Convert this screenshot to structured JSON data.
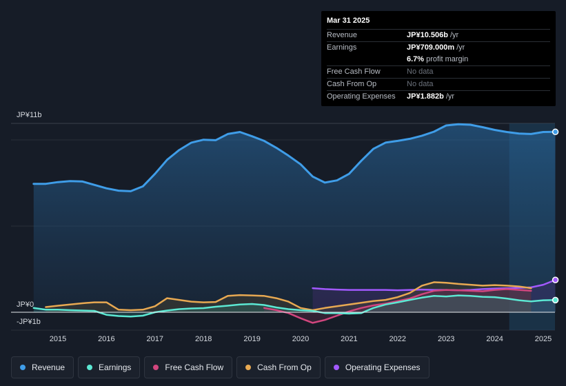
{
  "tooltip": {
    "date": "Mar 31 2025",
    "rows": {
      "revenue": {
        "label": "Revenue",
        "value": "JP¥10.506b",
        "unit": "/yr"
      },
      "earnings": {
        "label": "Earnings",
        "value": "JP¥709.000m",
        "unit": "/yr"
      },
      "margin": {
        "value": "6.7%",
        "unit": "profit margin"
      },
      "fcf": {
        "label": "Free Cash Flow",
        "value": "No data"
      },
      "cfo": {
        "label": "Cash From Op",
        "value": "No data"
      },
      "opex": {
        "label": "Operating Expenses",
        "value": "JP¥1.882b",
        "unit": "/yr"
      }
    }
  },
  "legend": {
    "revenue": "Revenue",
    "earnings": "Earnings",
    "fcf": "Free Cash Flow",
    "cfo": "Cash From Op",
    "opex": "Operating Expenses"
  },
  "colors": {
    "revenue": "#3f9de8",
    "earnings": "#5ce8d3",
    "fcf": "#d1467e",
    "cfo": "#e8a952",
    "opex": "#a259ff"
  },
  "chart_data": {
    "type": "area",
    "currency": "JP¥",
    "unit": "billions",
    "ylim": [
      -1,
      11
    ],
    "y_tick_labels": [
      {
        "value": 11,
        "label": "JP¥11b"
      },
      {
        "value": 0,
        "label": "JP¥0"
      },
      {
        "value": -1,
        "label": "-JP¥1b"
      }
    ],
    "x_tick_labels": [
      "2015",
      "2016",
      "2017",
      "2018",
      "2019",
      "2020",
      "2021",
      "2022",
      "2023",
      "2024",
      "2025"
    ],
    "highlight_from": 2024.3,
    "series": [
      {
        "name": "Revenue",
        "key": "revenue",
        "x": [
          2014.5,
          2014.75,
          2015.0,
          2015.25,
          2015.5,
          2015.75,
          2016.0,
          2016.25,
          2016.5,
          2016.75,
          2017.0,
          2017.25,
          2017.5,
          2017.75,
          2018.0,
          2018.25,
          2018.5,
          2018.75,
          2019.0,
          2019.25,
          2019.5,
          2019.75,
          2020.0,
          2020.25,
          2020.5,
          2020.75,
          2021.0,
          2021.25,
          2021.5,
          2021.75,
          2022.0,
          2022.25,
          2022.5,
          2022.75,
          2023.0,
          2023.25,
          2023.5,
          2023.75,
          2024.0,
          2024.25,
          2024.5,
          2024.75,
          2025.0,
          2025.25
        ],
        "values": [
          7.48,
          7.48,
          7.58,
          7.64,
          7.62,
          7.42,
          7.22,
          7.08,
          7.05,
          7.33,
          8.06,
          8.88,
          9.45,
          9.88,
          10.05,
          10.02,
          10.38,
          10.5,
          10.25,
          9.98,
          9.58,
          9.12,
          8.62,
          7.9,
          7.55,
          7.68,
          8.06,
          8.82,
          9.52,
          9.88,
          9.98,
          10.1,
          10.28,
          10.52,
          10.88,
          10.95,
          10.92,
          10.78,
          10.62,
          10.5,
          10.41,
          10.38,
          10.5,
          10.506
        ]
      },
      {
        "name": "Earnings",
        "key": "earnings",
        "x": [
          2014.5,
          2014.75,
          2015.0,
          2015.25,
          2015.5,
          2015.75,
          2016.0,
          2016.25,
          2016.5,
          2016.75,
          2017.0,
          2017.25,
          2017.5,
          2017.75,
          2018.0,
          2018.25,
          2018.5,
          2018.75,
          2019.0,
          2019.25,
          2019.5,
          2019.75,
          2020.0,
          2020.25,
          2020.5,
          2020.75,
          2021.0,
          2021.25,
          2021.5,
          2021.75,
          2022.0,
          2022.25,
          2022.5,
          2022.75,
          2023.0,
          2023.25,
          2023.5,
          2023.75,
          2024.0,
          2024.25,
          2024.5,
          2024.75,
          2025.0,
          2025.25
        ],
        "values": [
          0.25,
          0.15,
          0.15,
          0.12,
          0.1,
          0.08,
          -0.15,
          -0.22,
          -0.25,
          -0.2,
          0.0,
          0.1,
          0.18,
          0.22,
          0.24,
          0.32,
          0.38,
          0.45,
          0.48,
          0.42,
          0.28,
          0.18,
          0.12,
          0.08,
          -0.05,
          -0.05,
          -0.08,
          -0.05,
          0.25,
          0.45,
          0.58,
          0.72,
          0.85,
          0.95,
          0.92,
          0.98,
          0.95,
          0.9,
          0.88,
          0.8,
          0.7,
          0.63,
          0.7,
          0.709
        ]
      },
      {
        "name": "Free Cash Flow",
        "key": "fcf",
        "x": [
          2019.25,
          2019.5,
          2019.75,
          2020.0,
          2020.25,
          2020.5,
          2020.75,
          2021.0,
          2021.25,
          2021.5,
          2021.75,
          2022.0,
          2022.25,
          2022.5,
          2022.75,
          2023.0,
          2023.25,
          2023.5,
          2023.75,
          2024.0,
          2024.25,
          2024.5,
          2024.75
        ],
        "values": [
          0.25,
          0.12,
          -0.05,
          -0.35,
          -0.62,
          -0.45,
          -0.2,
          0.05,
          0.25,
          0.4,
          0.5,
          0.65,
          0.8,
          1.05,
          1.25,
          1.3,
          1.28,
          1.25,
          1.22,
          1.3,
          1.35,
          1.3,
          1.25
        ]
      },
      {
        "name": "Cash From Op",
        "key": "cfo",
        "x": [
          2014.75,
          2015.0,
          2015.25,
          2015.5,
          2015.75,
          2016.0,
          2016.25,
          2016.5,
          2016.75,
          2017.0,
          2017.25,
          2017.5,
          2017.75,
          2018.0,
          2018.25,
          2018.5,
          2018.75,
          2019.0,
          2019.25,
          2019.5,
          2019.75,
          2020.0,
          2020.25,
          2020.5,
          2020.75,
          2021.0,
          2021.25,
          2021.5,
          2021.75,
          2022.0,
          2022.25,
          2022.5,
          2022.75,
          2023.0,
          2023.25,
          2023.5,
          2023.75,
          2024.0,
          2024.25,
          2024.5,
          2024.75
        ],
        "values": [
          0.3,
          0.38,
          0.45,
          0.52,
          0.58,
          0.58,
          0.15,
          0.12,
          0.15,
          0.35,
          0.82,
          0.72,
          0.62,
          0.58,
          0.6,
          0.95,
          1.0,
          0.98,
          0.95,
          0.82,
          0.62,
          0.25,
          0.12,
          0.25,
          0.35,
          0.45,
          0.55,
          0.65,
          0.72,
          0.88,
          1.12,
          1.55,
          1.75,
          1.72,
          1.65,
          1.6,
          1.55,
          1.58,
          1.55,
          1.5,
          1.4
        ]
      },
      {
        "name": "Operating Expenses",
        "key": "opex",
        "x": [
          2020.25,
          2020.5,
          2020.75,
          2021.0,
          2021.25,
          2021.5,
          2021.75,
          2022.0,
          2022.25,
          2022.5,
          2022.75,
          2023.0,
          2023.25,
          2023.5,
          2023.75,
          2024.0,
          2024.25,
          2024.5,
          2024.75,
          2025.0,
          2025.25
        ],
        "values": [
          1.4,
          1.35,
          1.32,
          1.3,
          1.3,
          1.3,
          1.3,
          1.28,
          1.3,
          1.32,
          1.3,
          1.3,
          1.28,
          1.3,
          1.35,
          1.38,
          1.4,
          1.42,
          1.45,
          1.6,
          1.882
        ]
      }
    ]
  }
}
